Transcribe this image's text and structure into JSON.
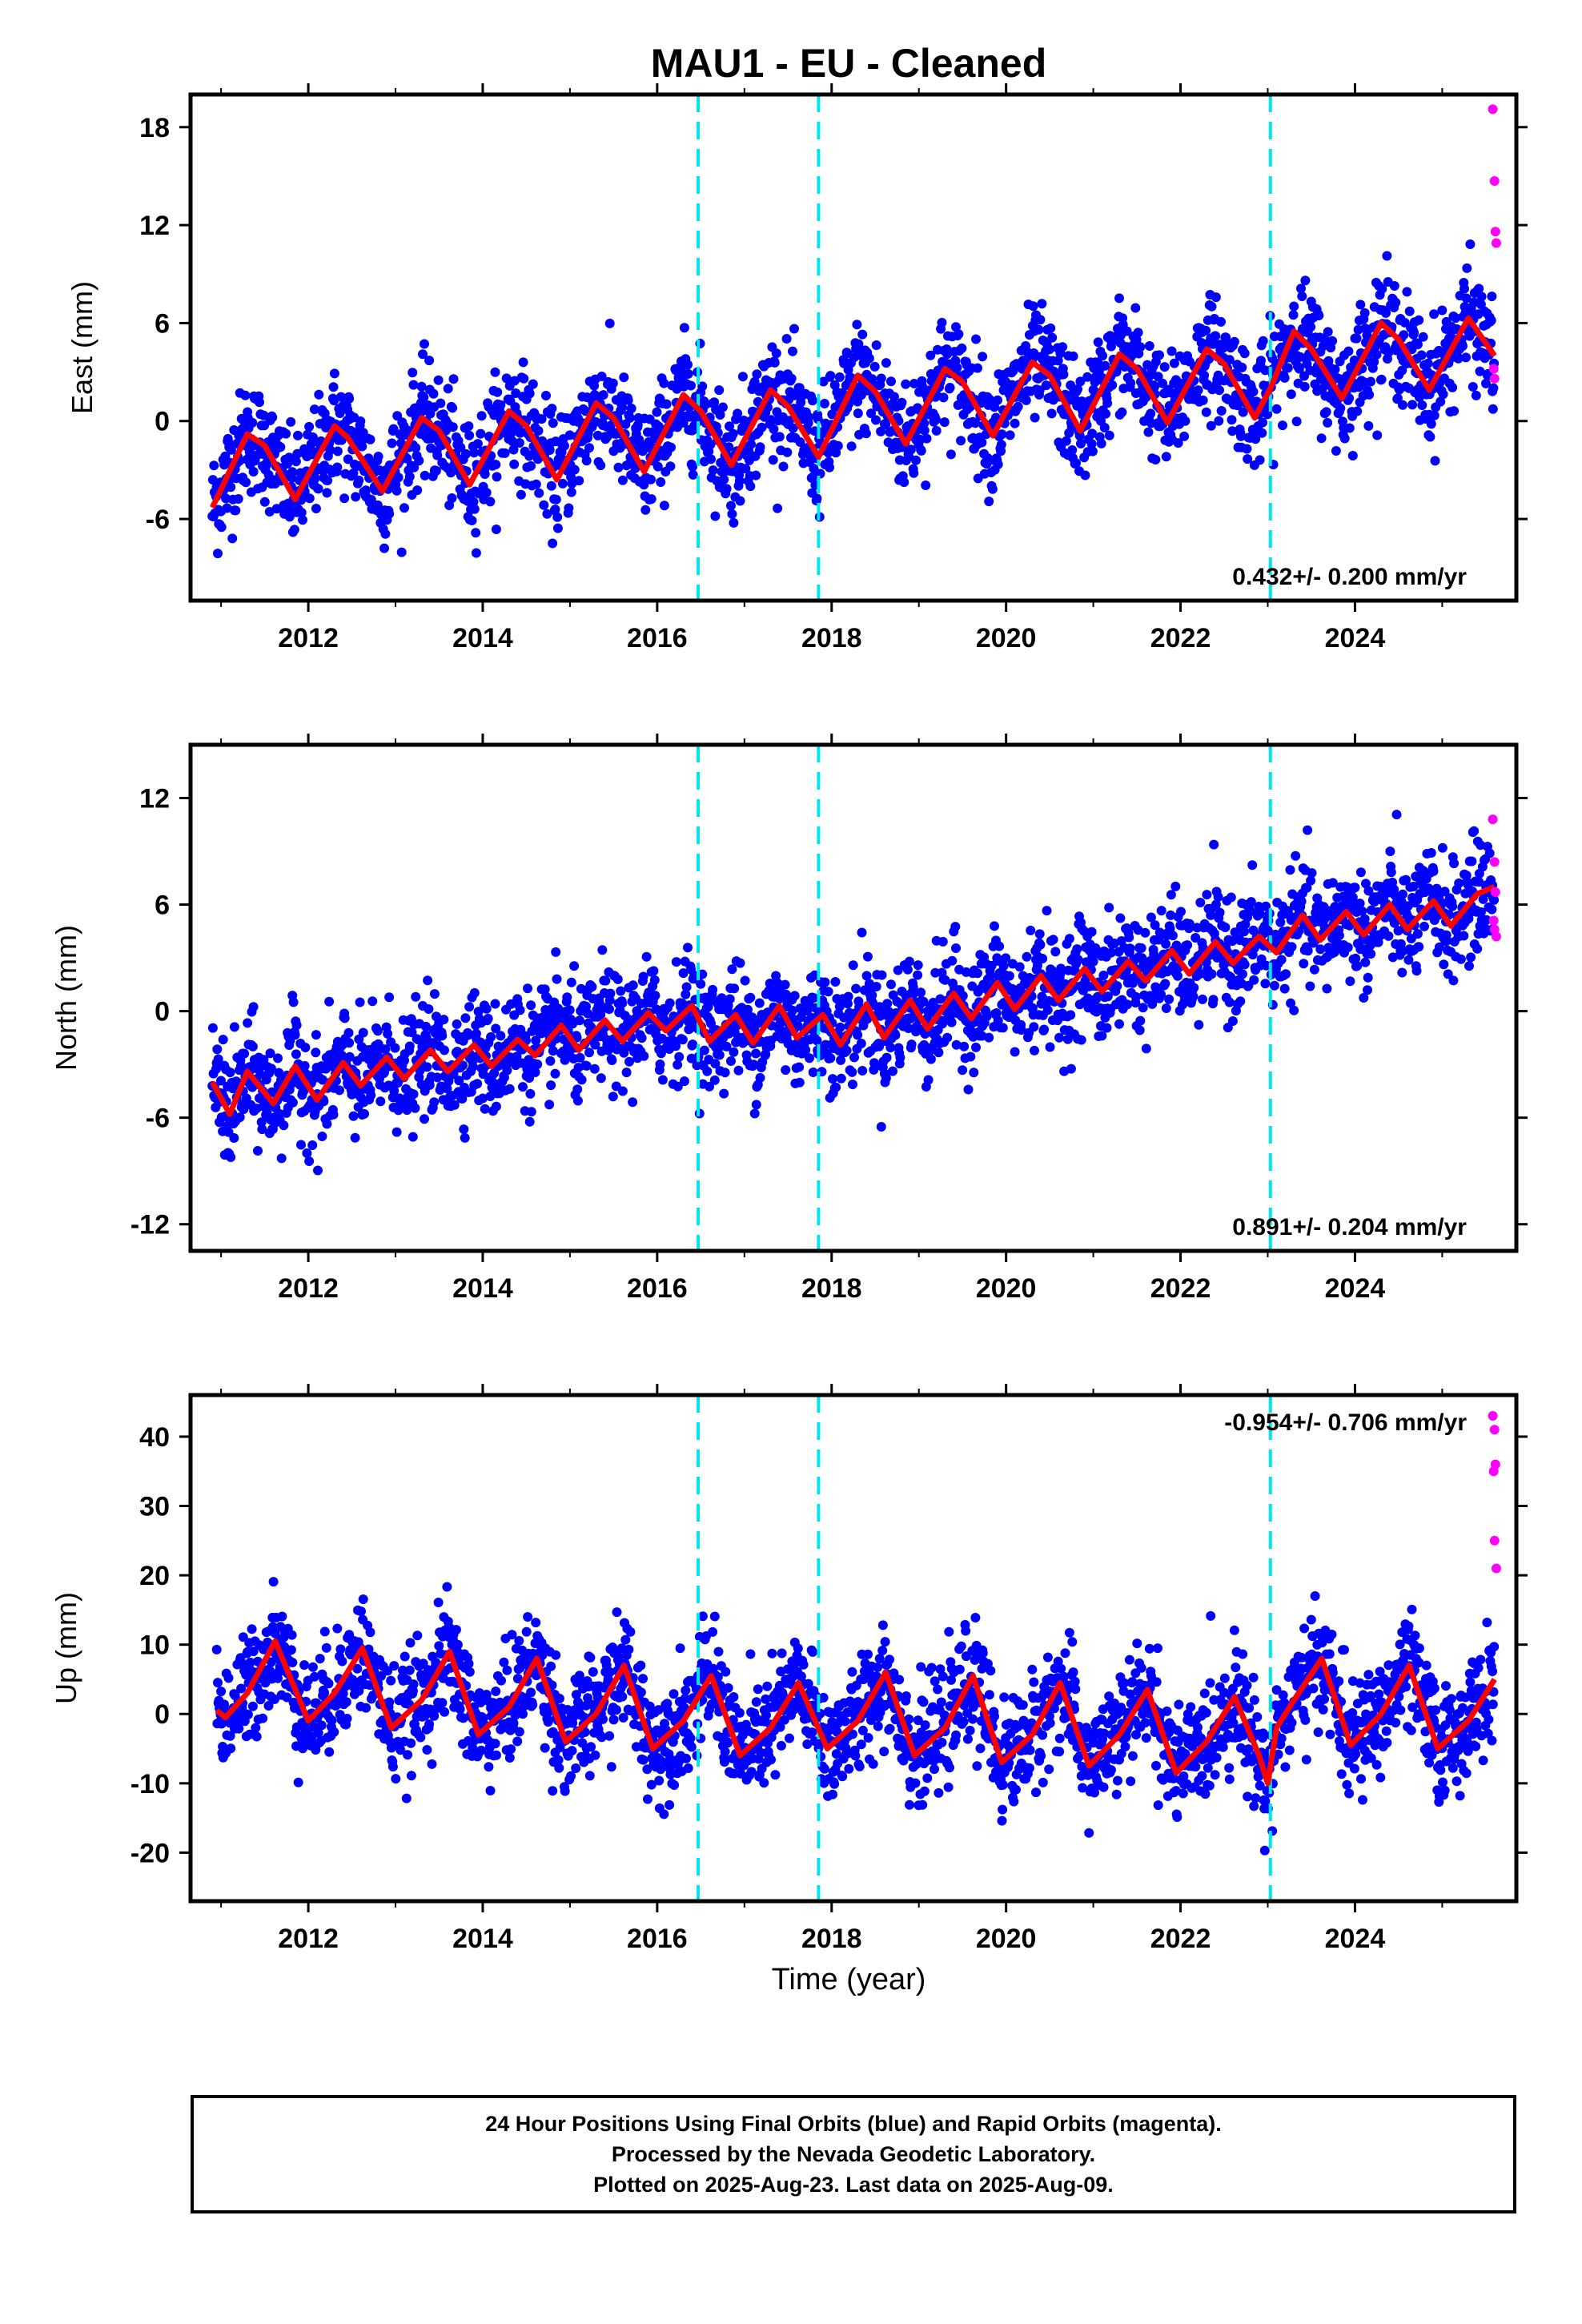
{
  "title": "MAU1  - EU - Cleaned",
  "x_label": "Time (year)",
  "x_ticks": [
    "2012",
    "2014",
    "2016",
    "2018",
    "2020",
    "2022",
    "2024"
  ],
  "footer": {
    "line1": "24 Hour Positions Using Final Orbits (blue) and Rapid Orbits (magenta).",
    "line2": "Processed by the Nevada Geodetic Laboratory.",
    "line3": "Plotted on 2025-Aug-23. Last data on 2025-Aug-09."
  },
  "colors": {
    "final_orbits": "#0000ff",
    "rapid_orbits": "#ff00ff",
    "model_fit": "#ff0000",
    "equipment_change": "#00e5ee"
  },
  "chart_data": [
    {
      "type": "scatter",
      "name": "east",
      "ylabel": "East (mm)",
      "xlim": [
        2010.65,
        2025.85
      ],
      "ylim": [
        -11,
        20
      ],
      "y_ticks": [
        "18",
        "12",
        "6",
        "0",
        "-6"
      ],
      "y_tick_values": [
        18,
        12,
        6,
        0,
        -6
      ],
      "annotation": "0.432+/- 0.200 mm/yr",
      "annotation_position": "bottom-right",
      "dashed_lines_x": [
        2016.47,
        2017.85,
        2023.03
      ],
      "series": [
        {
          "name": "model fit",
          "x": [
            2010.9,
            2011.3,
            2011.5,
            2011.85,
            2012.3,
            2012.45,
            2012.85,
            2013.3,
            2013.5,
            2013.85,
            2014.3,
            2014.5,
            2014.85,
            2015.3,
            2015.5,
            2015.85,
            2016.3,
            2016.5,
            2016.85,
            2017.3,
            2017.5,
            2017.85,
            2018.3,
            2018.5,
            2018.85,
            2019.3,
            2019.5,
            2019.85,
            2020.3,
            2020.5,
            2020.85,
            2021.3,
            2021.5,
            2021.85,
            2022.3,
            2022.5,
            2022.85,
            2023.03,
            2023.3,
            2023.5,
            2023.85,
            2024.3,
            2024.5,
            2024.85,
            2025.3,
            2025.6
          ],
          "y": [
            -5.3,
            -0.8,
            -1.5,
            -4.8,
            -0.3,
            -1.0,
            -4.3,
            0.2,
            -0.6,
            -3.9,
            0.6,
            -0.3,
            -3.6,
            1.1,
            0.2,
            -3.1,
            1.6,
            0.6,
            -2.7,
            1.9,
            0.9,
            -2.2,
            2.8,
            1.8,
            -1.4,
            3.2,
            2.4,
            -0.9,
            3.6,
            2.8,
            -0.6,
            4.1,
            3.2,
            -0.1,
            4.4,
            3.5,
            0.2,
            2.0,
            5.5,
            4.4,
            1.4,
            6.0,
            5.0,
            1.9,
            6.3,
            4.0
          ]
        },
        {
          "name": "rapid orbits",
          "x": [
            2025.58,
            2025.6,
            2025.61,
            2025.62,
            2025.59,
            2025.6
          ],
          "y": [
            19.1,
            14.7,
            11.6,
            10.9,
            3.2,
            2.6
          ]
        }
      ]
    },
    {
      "type": "scatter",
      "name": "north",
      "ylabel": "North (mm)",
      "xlim": [
        2010.65,
        2025.85
      ],
      "ylim": [
        -13.5,
        15
      ],
      "y_ticks": [
        "12",
        "6",
        "0",
        "-6",
        "-12"
      ],
      "y_tick_values": [
        12,
        6,
        0,
        -6,
        -12
      ],
      "annotation": "0.891+/- 0.204 mm/yr",
      "annotation_position": "bottom-right",
      "dashed_lines_x": [
        2016.47,
        2017.85,
        2023.03
      ],
      "series": [
        {
          "name": "model fit",
          "x": [
            2010.9,
            2011.1,
            2011.3,
            2011.6,
            2011.85,
            2012.1,
            2012.4,
            2012.6,
            2012.9,
            2013.1,
            2013.4,
            2013.6,
            2013.9,
            2014.1,
            2014.4,
            2014.6,
            2014.9,
            2015.1,
            2015.4,
            2015.6,
            2015.9,
            2016.1,
            2016.4,
            2016.6,
            2016.9,
            2017.1,
            2017.4,
            2017.6,
            2017.9,
            2018.1,
            2018.4,
            2018.6,
            2018.9,
            2019.1,
            2019.4,
            2019.6,
            2019.9,
            2020.1,
            2020.4,
            2020.6,
            2020.9,
            2021.1,
            2021.4,
            2021.6,
            2021.9,
            2022.1,
            2022.4,
            2022.6,
            2022.9,
            2023.1,
            2023.4,
            2023.6,
            2023.9,
            2024.1,
            2024.4,
            2024.6,
            2024.9,
            2025.1,
            2025.4,
            2025.6
          ],
          "y": [
            -4.0,
            -5.8,
            -3.4,
            -5.2,
            -3.1,
            -5.0,
            -2.9,
            -4.2,
            -2.6,
            -3.8,
            -2.2,
            -3.4,
            -1.9,
            -3.1,
            -1.6,
            -2.5,
            -0.8,
            -2.2,
            -0.5,
            -1.7,
            -0.1,
            -1.1,
            0.3,
            -1.7,
            -0.2,
            -1.8,
            0.3,
            -1.5,
            -0.2,
            -1.9,
            0.4,
            -1.5,
            0.6,
            -1.0,
            1.0,
            -0.4,
            1.6,
            0.1,
            2.0,
            0.6,
            2.4,
            1.1,
            2.8,
            1.7,
            3.4,
            2.1,
            3.9,
            2.7,
            4.2,
            3.3,
            5.4,
            4.0,
            5.6,
            4.3,
            6.0,
            4.6,
            6.2,
            4.8,
            6.6,
            7.0
          ]
        },
        {
          "name": "rapid orbits",
          "x": [
            2025.58,
            2025.6,
            2025.61,
            2025.59,
            2025.6,
            2025.62
          ],
          "y": [
            10.8,
            8.4,
            6.7,
            5.1,
            4.6,
            4.2
          ]
        }
      ]
    },
    {
      "type": "scatter",
      "name": "up",
      "ylabel": "Up (mm)",
      "xlim": [
        2010.65,
        2025.85
      ],
      "ylim": [
        -27,
        46
      ],
      "y_ticks": [
        "40",
        "30",
        "20",
        "10",
        "0",
        "-10",
        "-20"
      ],
      "y_tick_values": [
        40,
        30,
        20,
        10,
        0,
        -10,
        -20
      ],
      "annotation": "-0.954+/- 0.706 mm/yr",
      "annotation_position": "top-right",
      "dashed_lines_x": [
        2016.47,
        2017.85,
        2023.03
      ],
      "series": [
        {
          "name": "model fit",
          "x": [
            2010.95,
            2011.05,
            2011.3,
            2011.62,
            2012.0,
            2012.3,
            2012.62,
            2012.95,
            2013.3,
            2013.62,
            2013.95,
            2014.3,
            2014.62,
            2014.95,
            2015.3,
            2015.62,
            2015.95,
            2016.3,
            2016.62,
            2016.95,
            2017.3,
            2017.62,
            2017.95,
            2018.3,
            2018.62,
            2018.95,
            2019.3,
            2019.62,
            2019.95,
            2020.3,
            2020.62,
            2020.95,
            2021.3,
            2021.62,
            2021.95,
            2022.3,
            2022.62,
            2022.9,
            2023.0,
            2023.1,
            2023.3,
            2023.62,
            2023.95,
            2024.3,
            2024.62,
            2024.95,
            2025.3,
            2025.6
          ],
          "y": [
            0.5,
            -0.5,
            3.0,
            10.5,
            -1.0,
            3.0,
            9.5,
            -2.0,
            2.0,
            9.0,
            -3.0,
            1.0,
            8.0,
            -4.0,
            0.0,
            7.0,
            -5.0,
            -1.0,
            5.5,
            -6.0,
            -2.0,
            4.5,
            -5.0,
            -1.0,
            6.0,
            -6.0,
            -2.0,
            5.5,
            -7.0,
            -3.0,
            4.5,
            -7.5,
            -3.0,
            3.5,
            -8.5,
            -4.0,
            2.5,
            -6.0,
            -10.0,
            -2.0,
            2.0,
            8.0,
            -4.5,
            0.0,
            7.0,
            -5.0,
            -1.0,
            5.0
          ]
        },
        {
          "name": "rapid orbits",
          "x": [
            2025.58,
            2025.6,
            2025.61,
            2025.59,
            2025.6,
            2025.62
          ],
          "y": [
            43.0,
            41.0,
            36.0,
            35.0,
            25.0,
            21.0
          ]
        }
      ]
    }
  ]
}
